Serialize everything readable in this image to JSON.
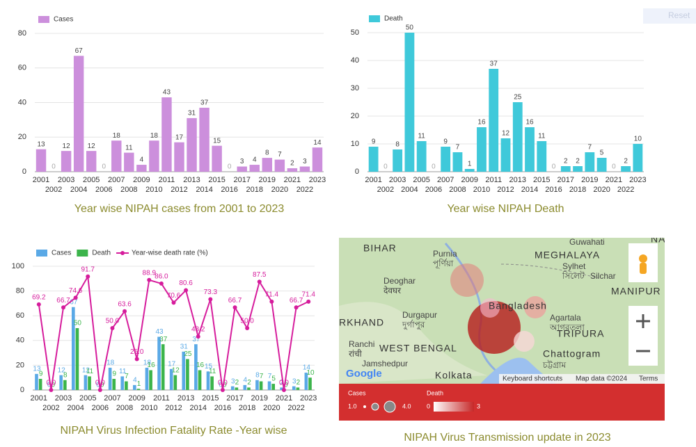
{
  "chart_data": [
    {
      "type": "bar",
      "title": "Year wise NIPAH cases from 2001 to 2023",
      "categories": [
        "2001",
        "2002",
        "2003",
        "2004",
        "2005",
        "2006",
        "2007",
        "2008",
        "2009",
        "2010",
        "2011",
        "2012",
        "2013",
        "2014",
        "2015",
        "2016",
        "2017",
        "2018",
        "2019",
        "2020",
        "2021",
        "2022",
        "2023"
      ],
      "series": [
        {
          "name": "Cases",
          "color": "#cc8fdc",
          "mark": "bar",
          "values": [
            13,
            0,
            12,
            67,
            12,
            0,
            18,
            11,
            4,
            18,
            43,
            17,
            31,
            37,
            15,
            0,
            3,
            4,
            8,
            7,
            2,
            3,
            14
          ]
        }
      ],
      "ylim": [
        0,
        80
      ],
      "yticks": [
        0,
        20,
        40,
        60,
        80
      ],
      "grid": true,
      "legend": "top-left"
    },
    {
      "type": "bar",
      "title": "Year wise NIPAH Death",
      "categories": [
        "2001",
        "2002",
        "2003",
        "2004",
        "2005",
        "2006",
        "2007",
        "2008",
        "2009",
        "2010",
        "2011",
        "2012",
        "2013",
        "2014",
        "2015",
        "2016",
        "2017",
        "2018",
        "2019",
        "2020",
        "2021",
        "2022",
        "2023"
      ],
      "series": [
        {
          "name": "Death",
          "color": "#3fc9da",
          "mark": "bar",
          "values": [
            9,
            0,
            8,
            50,
            11,
            0,
            9,
            7,
            1,
            16,
            37,
            12,
            25,
            16,
            11,
            0,
            2,
            2,
            7,
            5,
            0,
            2,
            10
          ]
        }
      ],
      "ylim": [
        0,
        50
      ],
      "yticks": [
        0,
        10,
        20,
        30,
        40,
        50
      ],
      "grid": true,
      "legend": "top-left"
    },
    {
      "type": "combo",
      "title": "NIPAH Virus Infection Fatality Rate -Year wise",
      "categories": [
        "2001",
        "2002",
        "2003",
        "2004",
        "2005",
        "2006",
        "2007",
        "2008",
        "2009",
        "2010",
        "2011",
        "2012",
        "2013",
        "2014",
        "2015",
        "2016",
        "2017",
        "2018",
        "2019",
        "2020",
        "2021",
        "2022",
        "2023"
      ],
      "series": [
        {
          "name": "Cases",
          "color": "#5aa9e6",
          "mark": "bar",
          "values": [
            13,
            0,
            12,
            67,
            12,
            0,
            18,
            11,
            4,
            18,
            43,
            17,
            31,
            37,
            15,
            0,
            3,
            4,
            8,
            7,
            2,
            3,
            14
          ]
        },
        {
          "name": "Death",
          "color": "#3cb44b",
          "mark": "bar",
          "values": [
            9,
            0,
            8,
            50,
            11,
            0,
            9,
            7,
            1,
            16,
            37,
            12,
            25,
            16,
            11,
            0,
            2,
            2,
            7,
            5,
            0,
            2,
            10
          ]
        },
        {
          "name": "Year-wise death rate (%)",
          "color": "#d61c9c",
          "mark": "line",
          "values": [
            69.2,
            0,
            66.7,
            74.6,
            91.7,
            0,
            50,
            63.6,
            25,
            88.9,
            86,
            70.6,
            80.6,
            43.2,
            73.3,
            0,
            66.7,
            50,
            87.5,
            71.4,
            0,
            66.7,
            71.4
          ],
          "value_labels": [
            "69.2",
            "0.0",
            "66.7",
            "74.6",
            "91.7",
            "0.0",
            "50.0",
            "63.6",
            "25.0",
            "88.9",
            "86.0",
            "70.6",
            "80.6",
            "43.2",
            "73.3",
            "0.0",
            "66.7",
            "50.0",
            "87.5",
            "71.4",
            "0.0",
            "66.7",
            "71.4"
          ]
        }
      ],
      "ylim": [
        0,
        100
      ],
      "yticks": [
        0,
        20,
        40,
        60,
        80,
        100
      ],
      "grid": true,
      "legend": "top-left"
    }
  ],
  "map": {
    "title": "NIPAH Virus Transmission update in 2023",
    "labels": [
      "BIHAR",
      "Purnia",
      "পূর্ণিয়া",
      "MEGHALAYA",
      "Guwahati",
      "NAGA",
      "Sylhet",
      "সিলেট",
      "Silchar",
      "MANIPUR",
      "Deoghar",
      "देवघर",
      "RKHAND",
      "Durgapur",
      "দুর্গাপুর",
      "Bangladesh",
      "Agartala",
      "আগরতলা",
      "TRIPURA",
      "Ranchi",
      "रांची",
      "WEST BENGAL",
      "Jamshedpur",
      "Chattogram",
      "চট্টগ্রাম",
      "Kolkata"
    ],
    "attribution": [
      "Google",
      "Keyboard shortcuts",
      "Map data ©2024",
      "Terms"
    ],
    "legend": {
      "size_title": "Cases",
      "size_min": "1.0",
      "size_max": "4.0",
      "color_title": "Death",
      "color_min": "0",
      "color_max": "3"
    }
  },
  "reset_button": "Reset"
}
